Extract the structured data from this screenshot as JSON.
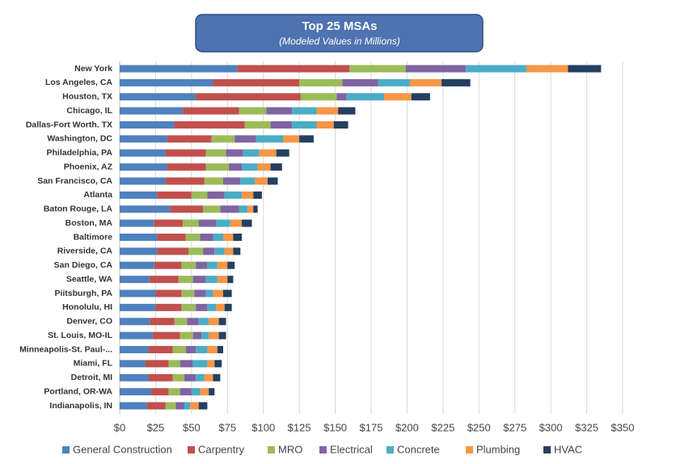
{
  "chart_data": {
    "type": "stacked-bar-horizontal",
    "title": "Top 25 MSAs",
    "subtitle": "(Modeled Values in Millions)",
    "categories": [
      "New York",
      "Los Angeles, CA",
      "Houston, TX",
      "Chicago, IL",
      "Dallas-Fort Worth. TX",
      "Washington, DC",
      "Philadelphia, PA",
      "Phoenix, AZ",
      "San Francisco, CA",
      "Atlanta",
      "Baton Rouge, LA",
      "Boston, MA",
      "Baltimore",
      "Riverside, CA",
      "San Diego, CA",
      "Seattle, WA",
      "Piitsburgh, PA",
      "Honolulu, HI",
      "Denver, CO",
      "St. Louis, MO-IL",
      "Minneapolis-St. Paul-...",
      "Miami, FL",
      "Detroit, MI",
      "Portland, OR-WA",
      "Indianapolis, IN"
    ],
    "series": [
      {
        "name": "General Construction",
        "color": "#4f81bd",
        "values": [
          82,
          65,
          53,
          44,
          38,
          33,
          32,
          33,
          32,
          26,
          35,
          24,
          26,
          26,
          24,
          21,
          25,
          25,
          21,
          23,
          20,
          18,
          20,
          22,
          19
        ]
      },
      {
        "name": "Carpentry",
        "color": "#c0504d",
        "values": [
          78,
          60,
          73,
          39,
          49,
          31,
          28,
          27,
          27,
          24,
          23,
          20,
          20,
          22,
          19,
          20,
          18,
          18,
          17,
          19,
          17,
          16,
          17,
          12,
          13
        ]
      },
      {
        "name": "MRO",
        "color": "#9bbb59",
        "values": [
          39,
          30,
          25,
          19,
          18,
          16,
          14,
          16,
          13,
          11,
          12,
          11,
          10,
          10,
          10,
          10,
          9,
          10,
          9,
          9,
          9,
          8,
          8,
          8,
          7
        ]
      },
      {
        "name": "Electrical",
        "color": "#8064a2",
        "values": [
          42,
          25,
          7,
          18,
          15,
          15,
          12,
          9,
          12,
          12,
          13,
          12,
          9,
          8,
          8,
          9,
          8,
          8,
          8,
          6,
          7,
          9,
          8,
          8,
          6
        ]
      },
      {
        "name": "Concrete",
        "color": "#4bacc6",
        "values": [
          42,
          22,
          26,
          17,
          17,
          19,
          11,
          11,
          10,
          12,
          6,
          10,
          7,
          7,
          7,
          8,
          5,
          6,
          7,
          5,
          8,
          10,
          6,
          6,
          4
        ]
      },
      {
        "name": "Plumbing",
        "color": "#f79646",
        "values": [
          29,
          22,
          19,
          15,
          12,
          11,
          12,
          9,
          9,
          8,
          4,
          8,
          7,
          6,
          7,
          7,
          7,
          6,
          7,
          7,
          7,
          5,
          6,
          6,
          6
        ]
      },
      {
        "name": "HVAC",
        "color": "#243f60",
        "values": [
          23,
          20,
          13,
          12,
          10,
          10,
          9,
          8,
          7,
          6,
          3,
          7,
          6,
          5,
          5,
          4,
          6,
          5,
          5,
          5,
          4,
          5,
          5,
          4,
          6
        ]
      }
    ],
    "xlim": [
      0,
      350
    ],
    "xticks": [
      {
        "value": 0,
        "label": "$0"
      },
      {
        "value": 25,
        "label": "$25"
      },
      {
        "value": 50,
        "label": "$50"
      },
      {
        "value": 75,
        "label": "$75"
      },
      {
        "value": 100,
        "label": "$100"
      },
      {
        "value": 125,
        "label": "$125"
      },
      {
        "value": 150,
        "label": "$150"
      },
      {
        "value": 175,
        "label": "$175"
      },
      {
        "value": 200,
        "label": "$200"
      },
      {
        "value": 225,
        "label": "$225"
      },
      {
        "value": 250,
        "label": "$250"
      },
      {
        "value": 275,
        "label": "$275"
      },
      {
        "value": 300,
        "label": "$300"
      },
      {
        "value": 325,
        "label": "$325"
      },
      {
        "value": 350,
        "label": "$350"
      }
    ],
    "grid": true,
    "legend": "bottom"
  }
}
